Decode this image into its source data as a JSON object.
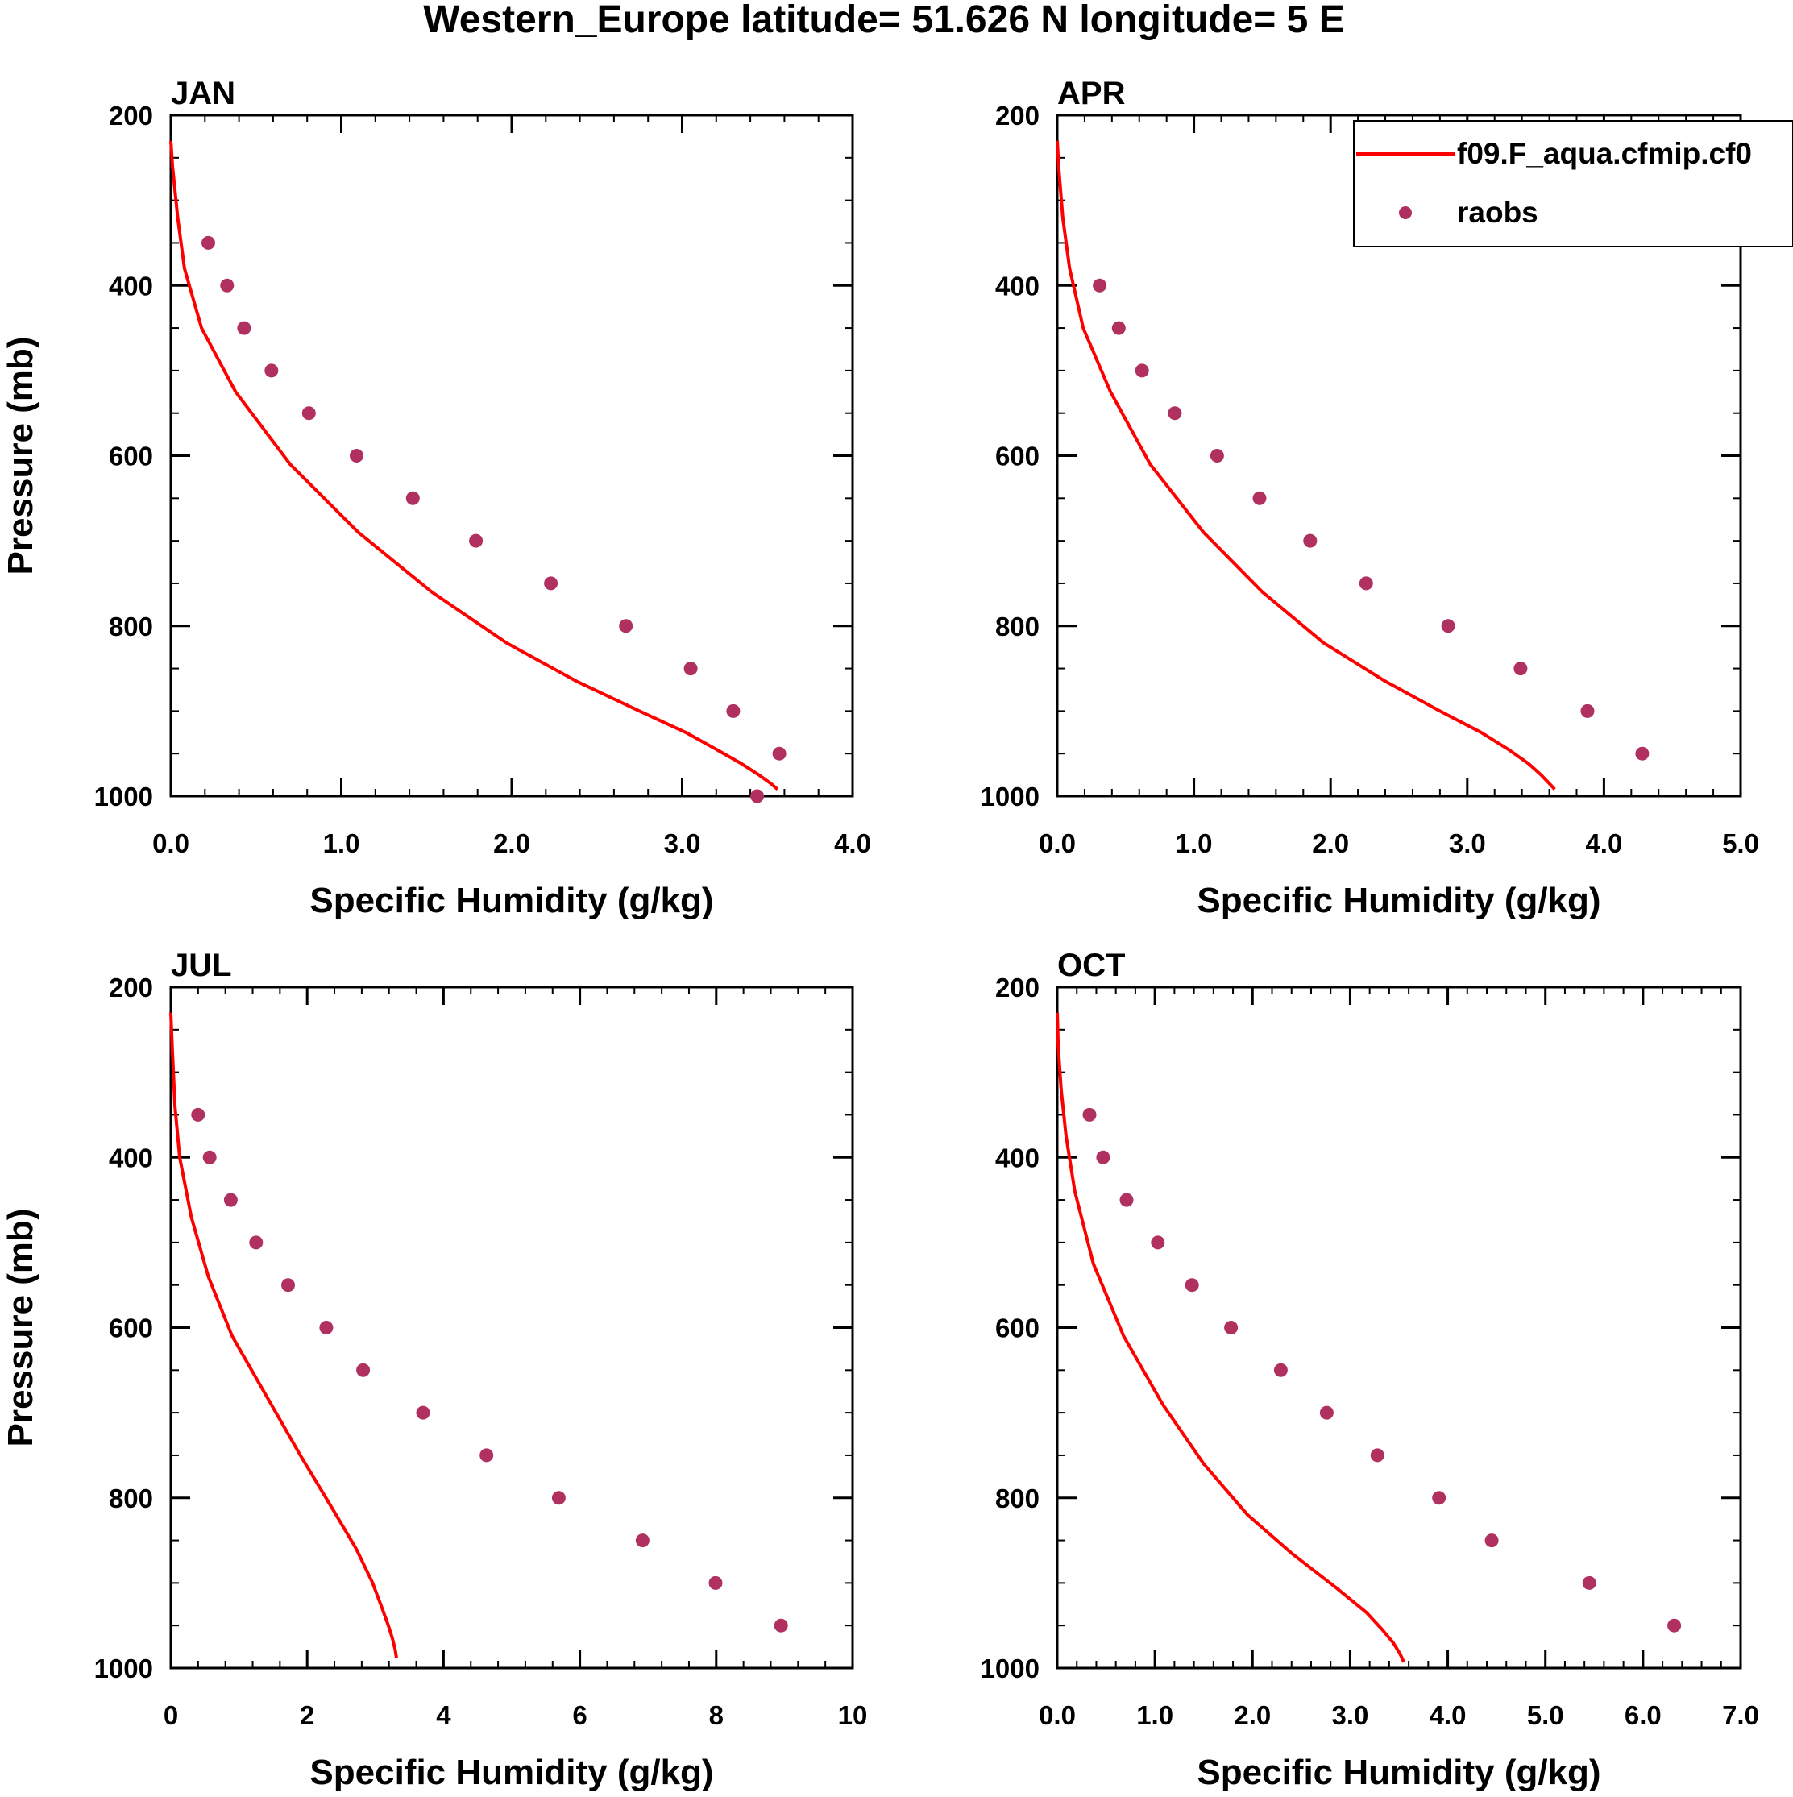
{
  "title": "Western_Europe  latitude= 51.626 N longitude= 5 E",
  "colors": {
    "model": "#ff0000",
    "obs": "#b03060",
    "axis": "#000000"
  },
  "legend": {
    "entries": [
      "f09.F_aqua.cfmip.cf0",
      "raobs"
    ]
  },
  "chart_data": [
    {
      "type": "line+scatter",
      "panel": "JAN",
      "xlabel": "Specific Humidity (g/kg)",
      "ylabel": "Pressure (mb)",
      "xlim": [
        0,
        4
      ],
      "ylim": [
        1000,
        200
      ],
      "xticks": [
        0,
        1,
        2,
        3,
        4
      ],
      "xtick_labels": [
        "0.0",
        "1.0",
        "2.0",
        "3.0",
        "4.0"
      ],
      "xminor": 0.2,
      "yticks": [
        200,
        400,
        600,
        800,
        1000
      ],
      "ytick_labels": [
        "200",
        "400",
        "600",
        "800",
        "1000"
      ],
      "series": [
        {
          "name": "f09.F_aqua.cfmip.cf0",
          "kind": "line",
          "x": [
            0.0,
            0.01,
            0.04,
            0.08,
            0.18,
            0.38,
            0.7,
            1.1,
            1.53,
            1.97,
            2.38,
            2.75,
            3.02,
            3.2,
            3.35,
            3.45,
            3.52,
            3.56
          ],
          "y": [
            230,
            260,
            320,
            380,
            450,
            525,
            610,
            690,
            760,
            820,
            865,
            900,
            925,
            945,
            962,
            975,
            985,
            992
          ]
        },
        {
          "name": "raobs",
          "kind": "scatter",
          "x": [
            0.22,
            0.33,
            0.43,
            0.59,
            0.81,
            1.09,
            1.42,
            1.79,
            2.23,
            2.67,
            3.05,
            3.3,
            3.57,
            3.44
          ],
          "y": [
            350,
            400,
            450,
            500,
            550,
            600,
            650,
            700,
            750,
            800,
            850,
            900,
            950,
            1000
          ]
        }
      ]
    },
    {
      "type": "line+scatter",
      "panel": "APR",
      "xlabel": "Specific Humidity (g/kg)",
      "ylabel": "",
      "xlim": [
        0,
        5
      ],
      "ylim": [
        1000,
        200
      ],
      "xticks": [
        0,
        1,
        2,
        3,
        4,
        5
      ],
      "xtick_labels": [
        "0.0",
        "1.0",
        "2.0",
        "3.0",
        "4.0",
        "5.0"
      ],
      "xminor": 0.2,
      "yticks": [
        200,
        400,
        600,
        800,
        1000
      ],
      "ytick_labels": [
        "200",
        "400",
        "600",
        "800",
        "1000"
      ],
      "series": [
        {
          "name": "f09.F_aqua.cfmip.cf0",
          "kind": "line",
          "x": [
            0.0,
            0.01,
            0.04,
            0.09,
            0.19,
            0.39,
            0.68,
            1.07,
            1.5,
            1.95,
            2.4,
            2.8,
            3.1,
            3.3,
            3.45,
            3.54,
            3.6,
            3.64
          ],
          "y": [
            230,
            260,
            320,
            380,
            450,
            525,
            610,
            690,
            760,
            820,
            865,
            900,
            925,
            945,
            962,
            975,
            985,
            992
          ]
        },
        {
          "name": "raobs",
          "kind": "scatter",
          "x": [
            0.31,
            0.45,
            0.62,
            0.86,
            1.17,
            1.48,
            1.85,
            2.26,
            2.86,
            3.39,
            3.88,
            4.28
          ],
          "y": [
            400,
            450,
            500,
            550,
            600,
            650,
            700,
            750,
            800,
            850,
            900,
            950
          ]
        }
      ]
    },
    {
      "type": "line+scatter",
      "panel": "JUL",
      "xlabel": "Specific Humidity (g/kg)",
      "ylabel": "Pressure (mb)",
      "xlim": [
        0,
        10
      ],
      "ylim": [
        1000,
        200
      ],
      "xticks": [
        0,
        2,
        4,
        6,
        8,
        10
      ],
      "xtick_labels": [
        "0",
        "2",
        "4",
        "6",
        "8",
        "10"
      ],
      "xminor": 0.4,
      "yticks": [
        200,
        400,
        600,
        800,
        1000
      ],
      "ytick_labels": [
        "200",
        "400",
        "600",
        "800",
        "1000"
      ],
      "series": [
        {
          "name": "f09.F_aqua.cfmip.cf0",
          "kind": "line",
          "x": [
            0.0,
            0.02,
            0.06,
            0.13,
            0.3,
            0.55,
            0.9,
            1.4,
            1.9,
            2.35,
            2.72,
            2.96,
            3.1,
            3.19,
            3.25,
            3.29,
            3.31
          ],
          "y": [
            230,
            270,
            340,
            400,
            470,
            540,
            610,
            680,
            750,
            810,
            860,
            900,
            930,
            950,
            965,
            978,
            988
          ]
        },
        {
          "name": "raobs",
          "kind": "scatter",
          "x": [
            0.4,
            0.57,
            0.88,
            1.25,
            1.72,
            2.28,
            2.82,
            3.7,
            4.63,
            5.69,
            6.92,
            7.99,
            8.95
          ],
          "y": [
            350,
            400,
            450,
            500,
            550,
            600,
            650,
            700,
            750,
            800,
            850,
            900,
            950
          ]
        }
      ]
    },
    {
      "type": "line+scatter",
      "panel": "OCT",
      "xlabel": "Specific Humidity (g/kg)",
      "ylabel": "",
      "xlim": [
        0,
        7
      ],
      "ylim": [
        1000,
        200
      ],
      "xticks": [
        0,
        1,
        2,
        3,
        4,
        5,
        6,
        7
      ],
      "xtick_labels": [
        "0.0",
        "1.0",
        "2.0",
        "3.0",
        "4.0",
        "5.0",
        "6.0",
        "7.0"
      ],
      "xminor": 0.2,
      "yticks": [
        200,
        400,
        600,
        800,
        1000
      ],
      "ytick_labels": [
        "200",
        "400",
        "600",
        "800",
        "1000"
      ],
      "series": [
        {
          "name": "f09.F_aqua.cfmip.cf0",
          "kind": "line",
          "x": [
            0.0,
            0.01,
            0.04,
            0.09,
            0.18,
            0.37,
            0.68,
            1.08,
            1.5,
            1.95,
            2.4,
            2.85,
            3.17,
            3.33,
            3.44,
            3.51,
            3.55
          ],
          "y": [
            230,
            270,
            320,
            375,
            440,
            525,
            610,
            690,
            760,
            820,
            865,
            905,
            935,
            955,
            970,
            983,
            993
          ]
        },
        {
          "name": "raobs",
          "kind": "scatter",
          "x": [
            0.33,
            0.47,
            0.71,
            1.03,
            1.38,
            1.78,
            2.29,
            2.76,
            3.28,
            3.91,
            4.45,
            5.45,
            6.32
          ],
          "y": [
            350,
            400,
            450,
            500,
            550,
            600,
            650,
            700,
            750,
            800,
            850,
            900,
            950
          ]
        }
      ]
    }
  ]
}
